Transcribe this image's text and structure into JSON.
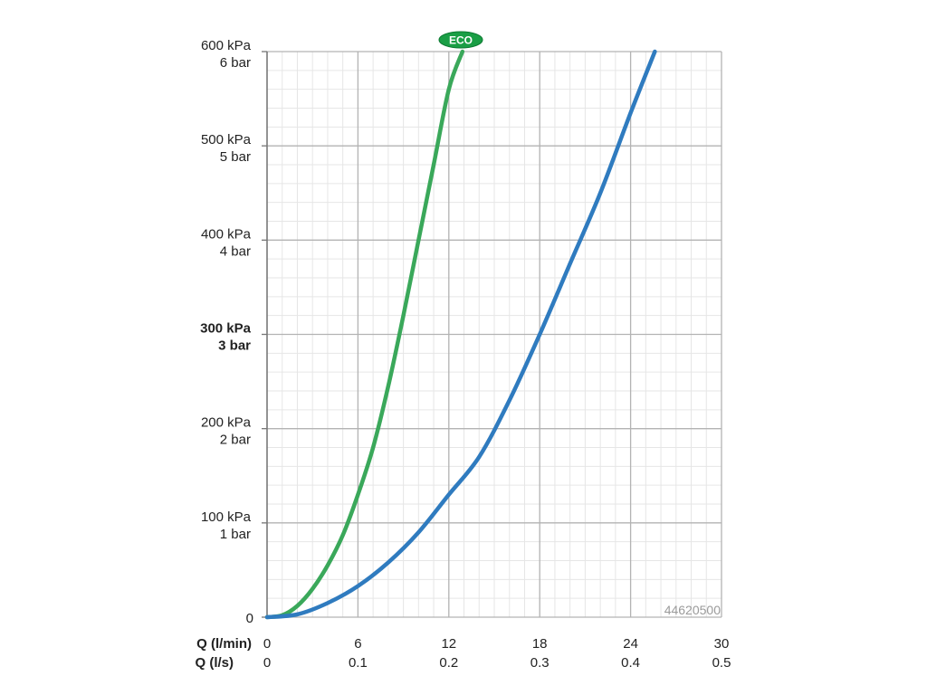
{
  "chart_data": {
    "type": "line",
    "x_ticks_primary": [
      "0",
      "6",
      "12",
      "18",
      "24",
      "30"
    ],
    "x_ticks_secondary": [
      "0",
      "0.1",
      "0.2",
      "0.3",
      "0.4",
      "0.5"
    ],
    "x_label_primary": "Q (l/min)",
    "x_label_secondary": "Q (l/s)",
    "xlim": [
      0,
      30
    ],
    "ylim": [
      0,
      600
    ],
    "y_ticks": [
      {
        "value": 0,
        "line1": "0",
        "line2": "",
        "bold": false
      },
      {
        "value": 100,
        "line1": "100 kPa",
        "line2": "1 bar",
        "bold": false
      },
      {
        "value": 200,
        "line1": "200 kPa",
        "line2": "2 bar",
        "bold": false
      },
      {
        "value": 300,
        "line1": "300 kPa",
        "line2": "3 bar",
        "bold": true
      },
      {
        "value": 400,
        "line1": "400 kPa",
        "line2": "4 bar",
        "bold": false
      },
      {
        "value": 500,
        "line1": "500 kPa",
        "line2": "5 bar",
        "bold": false
      },
      {
        "value": 600,
        "line1": "600 kPa",
        "line2": "6 bar",
        "bold": false
      }
    ],
    "grid": true,
    "series": [
      {
        "name": "ECO",
        "color": "#3aa85a",
        "points": [
          [
            0,
            0
          ],
          [
            1,
            2
          ],
          [
            2,
            12
          ],
          [
            3,
            30
          ],
          [
            4,
            55
          ],
          [
            5,
            87
          ],
          [
            6,
            130
          ],
          [
            7,
            180
          ],
          [
            8,
            245
          ],
          [
            9,
            320
          ],
          [
            10,
            400
          ],
          [
            11,
            480
          ],
          [
            12,
            560
          ],
          [
            12.9,
            600
          ]
        ]
      },
      {
        "name": "",
        "color": "#2f7bbf",
        "points": [
          [
            0,
            0
          ],
          [
            2,
            3
          ],
          [
            4,
            15
          ],
          [
            6,
            33
          ],
          [
            8,
            58
          ],
          [
            10,
            90
          ],
          [
            12,
            130
          ],
          [
            14,
            170
          ],
          [
            16,
            230
          ],
          [
            18,
            300
          ],
          [
            20,
            375
          ],
          [
            22,
            450
          ],
          [
            24,
            535
          ],
          [
            25.6,
            600
          ]
        ]
      }
    ],
    "badge": {
      "text": "ECO",
      "color": "#1a9e45"
    },
    "watermark": "44620500"
  }
}
